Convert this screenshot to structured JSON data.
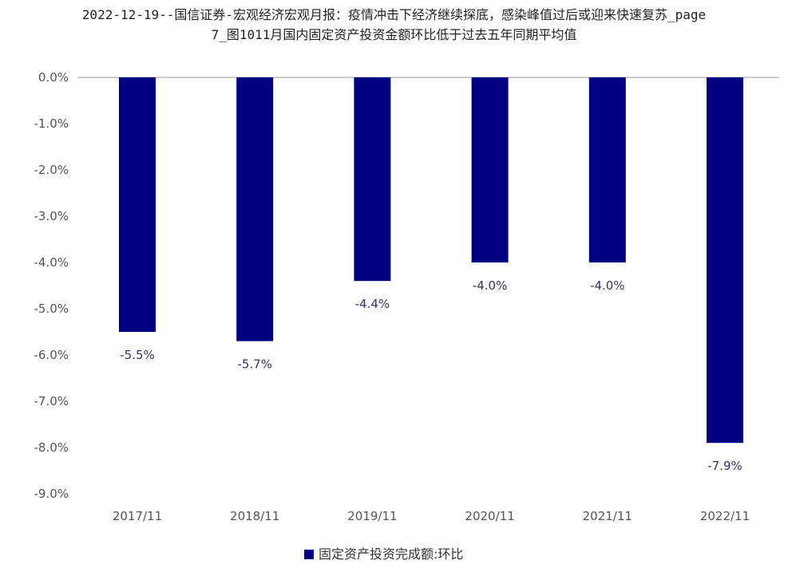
{
  "title": {
    "line1": "2022-12-19--国信证券-宏观经济宏观月报：疫情冲击下经济继续探底，感染峰值过后或迎来快速复苏_page",
    "line2": "7_图1011月国内固定资产投资金额环比低于过去五年同期平均值"
  },
  "colors": {
    "bar": "#000080",
    "axis": "#cccccc"
  },
  "chart_data": {
    "type": "bar",
    "categories": [
      "2017/11",
      "2018/11",
      "2019/11",
      "2020/11",
      "2021/11",
      "2022/11"
    ],
    "series": [
      {
        "name": "固定资产投资完成额:环比",
        "values": [
          -5.5,
          -5.7,
          -4.4,
          -4.0,
          -4.0,
          -7.9
        ],
        "labels": [
          "-5.5%",
          "-5.7%",
          "-4.4%",
          "-4.0%",
          "-4.0%",
          "-7.9%"
        ]
      }
    ],
    "ylim": [
      -9.0,
      0.0
    ],
    "yticks": [
      "0.0%",
      "-1.0%",
      "-2.0%",
      "-3.0%",
      "-4.0%",
      "-5.0%",
      "-6.0%",
      "-7.0%",
      "-8.0%",
      "-9.0%"
    ],
    "legend": {
      "position": "bottom",
      "label": "固定资产投资完成额:环比"
    },
    "grid": false
  }
}
